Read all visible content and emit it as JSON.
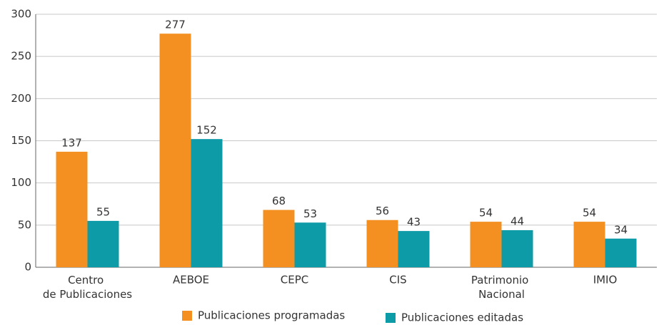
{
  "chart_data": {
    "type": "bar",
    "categories": [
      "Centro de Publicaciones",
      "AEBOE",
      "CEPC",
      "CIS",
      "Patrimonio Nacional",
      "IMIO"
    ],
    "series": [
      {
        "name": "Publicaciones programadas",
        "color": "#f39021",
        "values": [
          137,
          277,
          68,
          56,
          54,
          54
        ]
      },
      {
        "name": "Publicaciones editadas",
        "color": "#0e9ba8",
        "values": [
          55,
          152,
          53,
          43,
          44,
          34
        ]
      }
    ],
    "ylim": [
      0,
      300
    ],
    "yticks": [
      0,
      50,
      100,
      150,
      200,
      250,
      300
    ],
    "grid": true,
    "legend": "bottom"
  }
}
